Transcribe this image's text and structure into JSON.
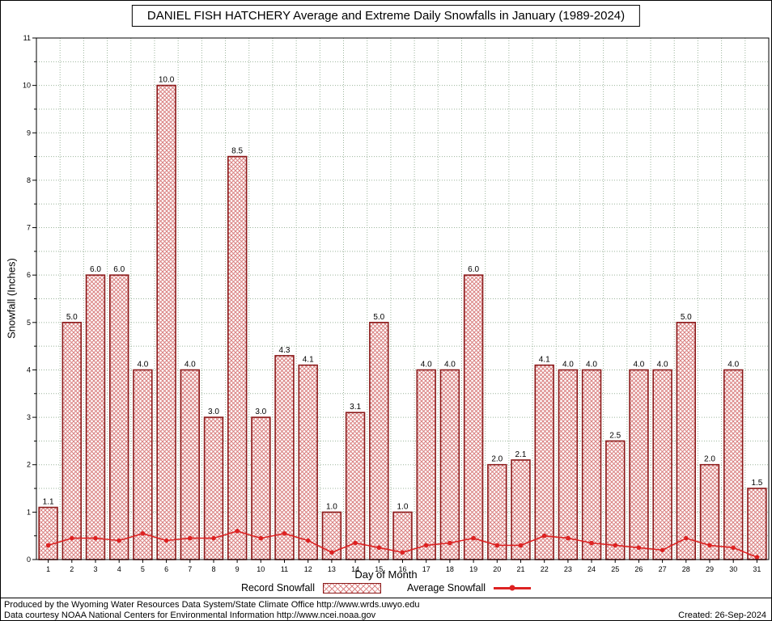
{
  "title": "DANIEL FISH HATCHERY Average and Extreme Daily Snowfalls in January (1989-2024)",
  "chart_data": {
    "type": "bar",
    "title": "DANIEL FISH HATCHERY Average and Extreme Daily Snowfalls in January (1989-2024)",
    "xlabel": "Day of Month",
    "ylabel": "Snowfall (Inches)",
    "ylim": [
      0,
      11
    ],
    "ytick_step": 1,
    "grid": "dotted",
    "legend_position": "bottom",
    "categories": [
      1,
      2,
      3,
      4,
      5,
      6,
      7,
      8,
      9,
      10,
      11,
      12,
      13,
      14,
      15,
      16,
      17,
      18,
      19,
      20,
      21,
      22,
      23,
      24,
      25,
      26,
      27,
      28,
      29,
      30,
      31
    ],
    "series": [
      {
        "name": "Record Snowfall",
        "type": "bar",
        "values": [
          1.1,
          5.0,
          6.0,
          6.0,
          4.0,
          10.0,
          4.0,
          3.0,
          8.5,
          3.0,
          4.3,
          4.1,
          1.0,
          3.1,
          5.0,
          1.0,
          4.0,
          4.0,
          6.0,
          2.0,
          2.1,
          4.1,
          4.0,
          4.0,
          2.5,
          4.0,
          4.0,
          5.0,
          2.0,
          4.0,
          1.5
        ]
      },
      {
        "name": "Average Snowfall",
        "type": "line",
        "values": [
          0.3,
          0.45,
          0.45,
          0.4,
          0.55,
          0.4,
          0.45,
          0.45,
          0.6,
          0.45,
          0.55,
          0.4,
          0.15,
          0.35,
          0.25,
          0.15,
          0.3,
          0.35,
          0.45,
          0.3,
          0.3,
          0.5,
          0.45,
          0.35,
          0.3,
          0.25,
          0.2,
          0.45,
          0.3,
          0.25,
          0.05
        ]
      }
    ],
    "colors": {
      "bar_border": "#8b1a1a",
      "bar_hatch": "#d98080",
      "line": "#dd2222",
      "grid": "#9bb49b",
      "axis": "#000000"
    }
  },
  "legend": {
    "record_label": "Record Snowfall",
    "average_label": "Average Snowfall"
  },
  "footer": {
    "line1": "Produced by the Wyoming Water Resources Data System/State Climate Office http://www.wrds.uwyo.edu",
    "line2": "Data courtesy NOAA National Centers for Environmental Information http://www.ncei.noaa.gov",
    "created": "Created: 26-Sep-2024"
  }
}
